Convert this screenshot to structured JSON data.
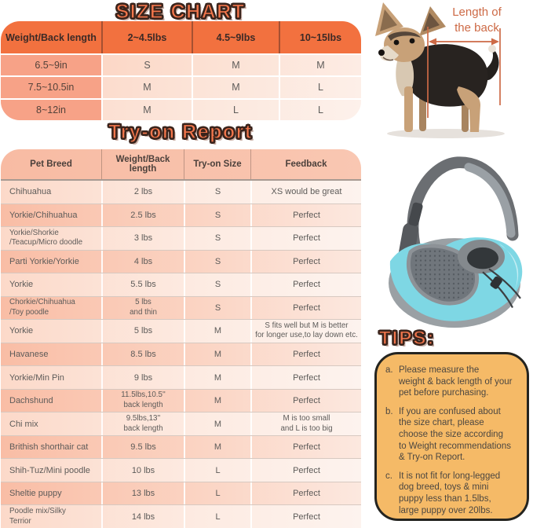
{
  "size_chart": {
    "title": "SIZE CHART",
    "columns": [
      "Weight/Back length",
      "2~4.5lbs",
      "4.5~9lbs",
      "10~15lbs"
    ],
    "rows": [
      {
        "label": "6.5~9in",
        "values": [
          "S",
          "M",
          "M"
        ]
      },
      {
        "label": "7.5~10.5in",
        "values": [
          "M",
          "M",
          "L"
        ]
      },
      {
        "label": "8~12in",
        "values": [
          "M",
          "L",
          "L"
        ]
      }
    ]
  },
  "tryon_report": {
    "title": "Try-on Report",
    "columns": [
      "Pet Breed",
      "Weight/Back length",
      "Try-on Size",
      "Feedback"
    ],
    "rows": [
      [
        "Chihuahua",
        "2 lbs",
        "S",
        "XS would be great"
      ],
      [
        "Yorkie/Chihuahua",
        "2.5 lbs",
        "S",
        "Perfect"
      ],
      [
        "Yorkie/Shorkie\n/Teacup/Micro doodle",
        "3 lbs",
        "S",
        "Perfect"
      ],
      [
        "Parti Yorkie/Yorkie",
        "4 lbs",
        "S",
        "Perfect"
      ],
      [
        "Yorkie",
        "5.5 lbs",
        "S",
        "Perfect"
      ],
      [
        "Chorkie/Chihuahua\n/Toy poodle",
        "5 lbs\nand thin",
        "S",
        "Perfect"
      ],
      [
        "Yorkie",
        "5 lbs",
        "M",
        "S fits well but M is better\nfor longer use,to lay down etc."
      ],
      [
        "Havanese",
        "8.5 lbs",
        "M",
        "Perfect"
      ],
      [
        "Yorkie/Min Pin",
        "9 lbs",
        "M",
        "Perfect"
      ],
      [
        "Dachshund",
        "11.5lbs,10.5''\nback length",
        "M",
        "Perfect"
      ],
      [
        "Chi mix",
        "9.5lbs,13''\nback length",
        "M",
        "M is too small\nand L is too big"
      ],
      [
        "Brithish shorthair cat",
        "9.5 lbs",
        "M",
        "Perfect"
      ],
      [
        "Shih-Tuz/Mini poodle",
        "10 lbs",
        "L",
        "Perfect"
      ],
      [
        "Sheltie puppy",
        "13 lbs",
        "L",
        "Perfect"
      ],
      [
        "Poodle mix/Silky\nTerrior",
        "14 lbs",
        "L",
        "Perfect"
      ]
    ]
  },
  "dog_figure": {
    "annotation": "Length of\nthe back"
  },
  "tips": {
    "title": "TIPS:",
    "items": [
      {
        "marker": "a.",
        "text": "Please measure the\nweight & back length of your\npet before purchasing."
      },
      {
        "marker": "b.",
        "text": "If you are confused about\nthe size chart, please\nchoose the size according\nto Weight recommendations\n& Try-on Report."
      },
      {
        "marker": "c.",
        "text": "It is not fit for long-legged\ndog breed, toys & mini\npuppy less than 1.5lbs,\nlarge puppy over 20lbs."
      }
    ]
  },
  "colors": {
    "header_orange": "#f2713f",
    "title_fill": "#f5774c",
    "title_outline": "#3a241c",
    "salmon_cell": "#f7a287",
    "tryon_header_peach": "#f9c2ab",
    "tips_bg": "#f5ba67",
    "annotation_orange": "#cd6a46",
    "bag_blue": "#7ed7e4",
    "bag_gray": "#6b6e72"
  }
}
